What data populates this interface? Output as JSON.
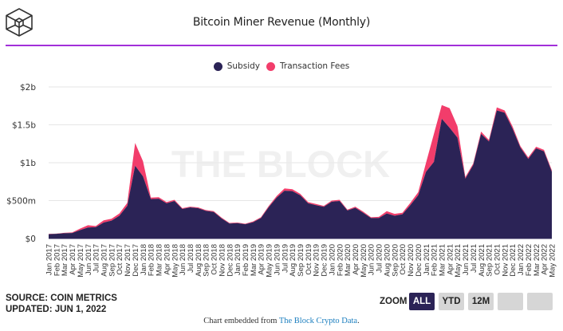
{
  "header": {
    "logo_icon": "the-block-cube-logo",
    "title": "Bitcoin Miner Revenue (Monthly)"
  },
  "legend": [
    {
      "label": "Subsidy",
      "color": "#2b2356"
    },
    {
      "label": "Transaction Fees",
      "color": "#f23d6b"
    }
  ],
  "watermark": "THE BLOCK",
  "footer": {
    "source": "SOURCE: COIN METRICS",
    "updated": "UPDATED: JUN 1, 2022",
    "zoom_label": "ZOOM",
    "zoom_buttons": [
      {
        "label": "ALL",
        "active": true
      },
      {
        "label": "YTD",
        "active": false
      },
      {
        "label": "12M",
        "active": false
      },
      {
        "label": "",
        "active": false
      },
      {
        "label": "",
        "active": false
      }
    ],
    "embed_prefix": "Chart embedded from ",
    "embed_link": "The Block Crypto Data",
    "embed_suffix": "."
  },
  "chart_data": {
    "type": "area",
    "stacked": true,
    "title": "Bitcoin Miner Revenue (Monthly)",
    "xlabel": "",
    "ylabel": "",
    "ylim": [
      0,
      2000
    ],
    "y_unit": "USD millions",
    "y_ticks": [
      0,
      500,
      1000,
      1500,
      2000
    ],
    "y_tick_labels": [
      "$0",
      "$500m",
      "$1b",
      "$1.5b",
      "$2b"
    ],
    "grid": true,
    "legend_position": "top-center",
    "categories": [
      "Jan 2017",
      "Feb 2017",
      "Mar 2017",
      "Apr 2017",
      "May 2017",
      "Jun 2017",
      "Jul 2017",
      "Aug 2017",
      "Sep 2017",
      "Oct 2017",
      "Nov 2017",
      "Dec 2017",
      "Jan 2018",
      "Feb 2018",
      "Mar 2018",
      "Apr 2018",
      "May 2018",
      "Jun 2018",
      "Jul 2018",
      "Aug 2018",
      "Sep 2018",
      "Oct 2018",
      "Nov 2018",
      "Dec 2018",
      "Jan 2019",
      "Feb 2019",
      "Mar 2019",
      "Apr 2019",
      "May 2019",
      "Jun 2019",
      "Jul 2019",
      "Aug 2019",
      "Sep 2019",
      "Oct 2019",
      "Nov 2019",
      "Dec 2019",
      "Jan 2020",
      "Feb 2020",
      "Mar 2020",
      "Apr 2020",
      "May 2020",
      "Jun 2020",
      "Jul 2020",
      "Aug 2020",
      "Sep 2020",
      "Oct 2020",
      "Nov 2020",
      "Dec 2020",
      "Jan 2021",
      "Feb 2021",
      "Mar 2021",
      "Apr 2021",
      "May 2021",
      "Jun 2021",
      "Jul 2021",
      "Aug 2021",
      "Sep 2021",
      "Oct 2021",
      "Nov 2021",
      "Dec 2021",
      "Jan 2022",
      "Feb 2022",
      "Mar 2022",
      "Apr 2022",
      "May 2022"
    ],
    "series": [
      {
        "name": "Subsidy",
        "color": "#2b2356",
        "values": [
          57,
          62,
          70,
          72,
          110,
          145,
          150,
          210,
          235,
          300,
          430,
          960,
          820,
          520,
          525,
          465,
          495,
          390,
          410,
          400,
          365,
          350,
          265,
          198,
          202,
          188,
          215,
          270,
          415,
          540,
          630,
          625,
          570,
          465,
          440,
          418,
          485,
          495,
          370,
          405,
          340,
          270,
          270,
          330,
          300,
          320,
          440,
          570,
          880,
          1010,
          1580,
          1460,
          1330,
          790,
          970,
          1380,
          1280,
          1690,
          1660,
          1450,
          1200,
          1050,
          1190,
          1150,
          880
        ]
      },
      {
        "name": "Transaction Fees",
        "color": "#f23d6b",
        "values": [
          3,
          3,
          5,
          8,
          20,
          30,
          15,
          30,
          25,
          30,
          40,
          300,
          200,
          20,
          20,
          15,
          15,
          10,
          10,
          10,
          10,
          10,
          10,
          7,
          8,
          7,
          10,
          10,
          15,
          20,
          30,
          25,
          20,
          15,
          15,
          12,
          15,
          15,
          10,
          15,
          15,
          10,
          15,
          30,
          25,
          20,
          30,
          40,
          120,
          370,
          180,
          260,
          150,
          20,
          20,
          30,
          20,
          40,
          30,
          30,
          20,
          20,
          20,
          20,
          20
        ]
      }
    ]
  }
}
